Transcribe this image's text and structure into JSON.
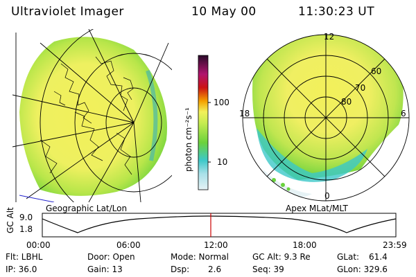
{
  "header": {
    "instrument": "Ultraviolet Imager",
    "date": "10 May 00",
    "time": "11:30:23 UT"
  },
  "left_panel": {
    "caption": "Geographic Lat/Lon"
  },
  "right_panel": {
    "caption": "Apex  MLat/MLT",
    "mlt_labels": {
      "top": "12",
      "left": "18",
      "right": "6",
      "bottom": "0"
    },
    "lat_labels": [
      "60",
      "70",
      "80"
    ]
  },
  "colorbar": {
    "unit": "photon cm⁻²s⁻¹",
    "ticks": [
      "100",
      "10"
    ]
  },
  "altitude_strip": {
    "axis_label": "GC Alt",
    "y_ticks": [
      "9.0",
      "1.8"
    ],
    "time_ticks": [
      "00:00",
      "06:00",
      "12:00",
      "18:00",
      "23:59"
    ],
    "marker_color": "#cc0000"
  },
  "status": {
    "filter": "Flt: LBHL",
    "ip": "IP: 36.0",
    "door": "Door: Open",
    "gain": "Gain: 13",
    "mode": "Mode: Normal",
    "dsp_label": "Dsp:",
    "dsp_value": "2.6",
    "gc_alt": "GC Alt: 9.3 Re",
    "seq": "Seq: 39",
    "glat_label": "GLat:",
    "glat_value": "61.4",
    "glon": "GLon: 329.6"
  },
  "colors": {
    "low": "#e6f2f5",
    "cyan": "#3cc8c8",
    "green": "#6bd23c",
    "yellow": "#f2f05a",
    "orange": "#f5a000",
    "red": "#cc1414",
    "dark": "#2a0a2a"
  }
}
